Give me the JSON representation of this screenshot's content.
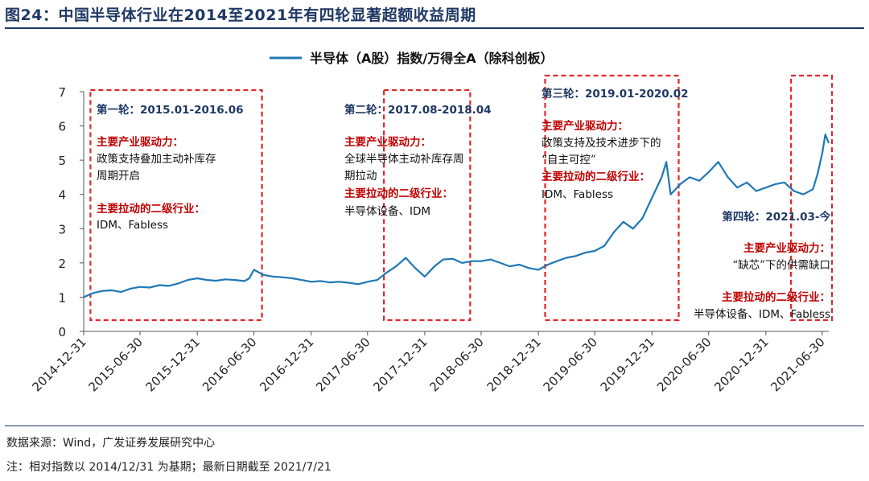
{
  "figure": {
    "title": "图24：中国半导体行业在2014至2021年有四轮显著超额收益周期",
    "source": "数据来源：Wind，广发证券发展研究中心",
    "note": "注：相对指数以 2014/12/31 为基期；最新日期截至 2021/7/21"
  },
  "colors": {
    "line": "#1f78b4",
    "box": "#e0262b",
    "heading": "#1f3864",
    "highlight": "#c00000"
  },
  "annotations": [
    {
      "heading": "第一轮：2015.01-2016.06",
      "driver_label": "主要产业驱动力：",
      "driver_lines": [
        "政策支持叠加主动补库存",
        "周期开启"
      ],
      "sector_label": "主要拉动的二级行业：",
      "sectors": "IDM、Fabless"
    },
    {
      "heading": "第二轮：2017.08-2018.04",
      "driver_label": "主要产业驱动力：",
      "driver_lines": [
        "全球半导体主动补库存周",
        "期拉动"
      ],
      "sector_label": "主要拉动的二级行业：",
      "sectors": "半导体设备、IDM"
    },
    {
      "heading": "第三轮：2019.01-2020.02",
      "driver_label": "主要产业驱动力：",
      "driver_lines": [
        "政策支持及技术进步下的",
        "“自主可控”"
      ],
      "sector_label": "主要拉动的二级行业：",
      "sectors": "IDM、Fabless"
    },
    {
      "heading": "第四轮：2021.03-今",
      "driver_label": "主要产业驱动力：",
      "driver_lines": [
        "“缺芯”下的供需缺口"
      ],
      "sector_label": "主要拉动的二级行业：",
      "sectors": "半导体设备、IDM、Fabless"
    }
  ],
  "chart_data": {
    "type": "line",
    "title": "",
    "xlabel": "",
    "ylabel": "",
    "ylim": [
      0,
      7
    ],
    "yticks": [
      0,
      1,
      2,
      3,
      4,
      5,
      6,
      7
    ],
    "xlim": [
      "2014-12-31",
      "2021-07-21"
    ],
    "xticks": [
      "2014-12-31",
      "2015-06-30",
      "2015-12-31",
      "2016-06-30",
      "2016-12-31",
      "2017-06-30",
      "2017-12-31",
      "2018-06-30",
      "2018-12-31",
      "2019-06-30",
      "2019-12-31",
      "2020-06-30",
      "2020-12-31",
      "2021-06-30"
    ],
    "legend": {
      "position": "top-center",
      "entries": [
        "半导体（A股）指数/万得全A（除科创板）"
      ]
    },
    "series": [
      {
        "name": "半导体（A股）指数/万得全A（除科创板）",
        "x": [
          "2014-12-31",
          "2015-01-31",
          "2015-02-28",
          "2015-03-31",
          "2015-04-30",
          "2015-05-31",
          "2015-06-30",
          "2015-07-31",
          "2015-08-31",
          "2015-09-30",
          "2015-10-31",
          "2015-11-30",
          "2015-12-31",
          "2016-01-31",
          "2016-02-29",
          "2016-03-31",
          "2016-04-30",
          "2016-05-31",
          "2016-06-15",
          "2016-06-30",
          "2016-07-31",
          "2016-08-31",
          "2016-09-30",
          "2016-10-31",
          "2016-11-30",
          "2016-12-31",
          "2017-01-31",
          "2017-02-28",
          "2017-03-31",
          "2017-04-30",
          "2017-05-31",
          "2017-06-30",
          "2017-07-31",
          "2017-08-31",
          "2017-09-30",
          "2017-10-31",
          "2017-11-30",
          "2017-12-31",
          "2018-01-31",
          "2018-02-28",
          "2018-03-31",
          "2018-04-30",
          "2018-05-31",
          "2018-06-30",
          "2018-07-31",
          "2018-08-31",
          "2018-09-30",
          "2018-10-31",
          "2018-11-30",
          "2018-12-31",
          "2019-01-31",
          "2019-02-28",
          "2019-03-31",
          "2019-04-30",
          "2019-05-31",
          "2019-06-30",
          "2019-07-31",
          "2019-08-31",
          "2019-09-30",
          "2019-10-31",
          "2019-11-30",
          "2019-12-31",
          "2020-01-31",
          "2020-02-15",
          "2020-02-29",
          "2020-03-31",
          "2020-04-30",
          "2020-05-31",
          "2020-06-30",
          "2020-07-31",
          "2020-08-31",
          "2020-09-30",
          "2020-10-31",
          "2020-11-30",
          "2020-12-31",
          "2021-01-31",
          "2021-02-28",
          "2021-03-31",
          "2021-04-30",
          "2021-05-31",
          "2021-06-15",
          "2021-06-30",
          "2021-07-10",
          "2021-07-21"
        ],
        "values": [
          1.0,
          1.12,
          1.18,
          1.2,
          1.15,
          1.25,
          1.3,
          1.28,
          1.35,
          1.33,
          1.4,
          1.5,
          1.55,
          1.5,
          1.48,
          1.52,
          1.5,
          1.47,
          1.55,
          1.8,
          1.65,
          1.6,
          1.58,
          1.55,
          1.5,
          1.45,
          1.47,
          1.43,
          1.45,
          1.42,
          1.38,
          1.45,
          1.5,
          1.72,
          1.9,
          2.15,
          1.85,
          1.6,
          1.9,
          2.1,
          2.12,
          2.0,
          2.05,
          2.05,
          2.1,
          2.0,
          1.9,
          1.95,
          1.85,
          1.8,
          1.95,
          2.05,
          2.15,
          2.2,
          2.3,
          2.35,
          2.5,
          2.9,
          3.2,
          3.0,
          3.3,
          3.9,
          4.5,
          4.95,
          4.0,
          4.3,
          4.5,
          4.4,
          4.65,
          4.95,
          4.5,
          4.2,
          4.35,
          4.1,
          4.2,
          4.3,
          4.35,
          4.1,
          4.0,
          4.15,
          4.6,
          5.2,
          5.75,
          5.5
        ]
      }
    ],
    "highlight_periods": [
      {
        "start": "2015-01-01",
        "end": "2016-06-30",
        "label": "第一轮"
      },
      {
        "start": "2017-08-01",
        "end": "2018-04-30",
        "label": "第二轮"
      },
      {
        "start": "2019-01-01",
        "end": "2020-02-29",
        "label": "第三轮"
      },
      {
        "start": "2021-03-01",
        "end": "2021-07-21",
        "label": "第四轮"
      }
    ]
  }
}
